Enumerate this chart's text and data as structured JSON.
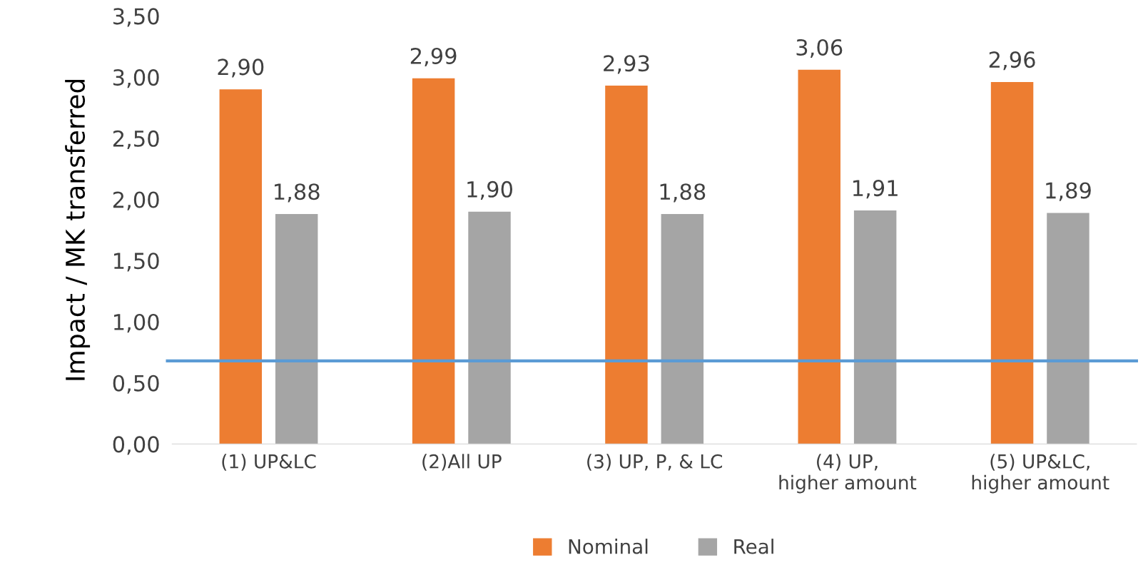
{
  "chart_data": {
    "type": "bar",
    "ylabel": "Impact / MK transferred",
    "categories": [
      "(1) UP&LC",
      "(2)All UP",
      "(3) UP, P, & LC",
      "(4) UP, higher amount",
      "(5) UP&LC, higher amount"
    ],
    "series": [
      {
        "name": "Nominal",
        "color": "#ed7d31",
        "values": [
          2.9,
          2.99,
          2.93,
          3.06,
          2.96
        ],
        "value_labels": [
          "2,90",
          "2,99",
          "2,93",
          "3,06",
          "2,96"
        ]
      },
      {
        "name": "Real",
        "color": "#a5a5a5",
        "values": [
          1.88,
          1.9,
          1.88,
          1.91,
          1.89
        ],
        "value_labels": [
          "1,88",
          "1,90",
          "1,88",
          "1,91",
          "1,89"
        ]
      }
    ],
    "ylim": [
      0,
      3.5
    ],
    "yticks": [
      {
        "value": 0,
        "label": "0,00"
      },
      {
        "value": 0.5,
        "label": "0,50"
      },
      {
        "value": 1.0,
        "label": "1,00"
      },
      {
        "value": 1.5,
        "label": "1,50"
      },
      {
        "value": 2.0,
        "label": "2,00"
      },
      {
        "value": 2.5,
        "label": "2,50"
      },
      {
        "value": 3.0,
        "label": "3,00"
      },
      {
        "value": 3.5,
        "label": "3,50"
      }
    ],
    "ref_lines": [
      {
        "axis": "y",
        "value": 0.68,
        "color": "#5b9bd5"
      }
    ],
    "grid": false,
    "legend": "bottom"
  }
}
